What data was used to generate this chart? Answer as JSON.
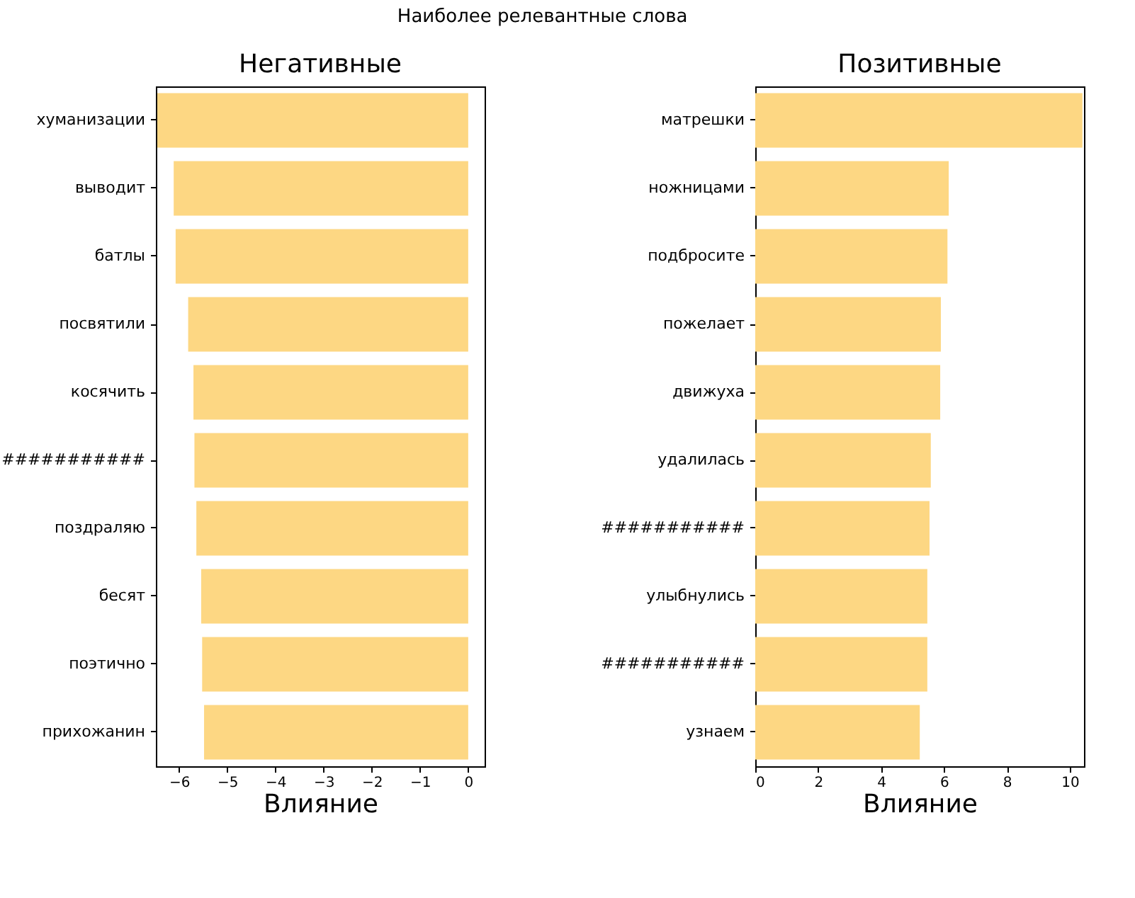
{
  "chart_data": [
    {
      "type": "bar",
      "orientation": "horizontal",
      "title": "Негативные",
      "xlabel": "Влияние",
      "annotations": [
        "Наиболее релевантные слова"
      ],
      "categories": [
        "хуманизации",
        "выводит",
        "батлы",
        "посвятили",
        "косячить",
        "###########",
        "поздраляю",
        "бесят",
        "поэтично",
        "прихожанин"
      ],
      "values": [
        -6.45,
        -6.11,
        -6.07,
        -5.81,
        -5.7,
        -5.68,
        -5.64,
        -5.54,
        -5.52,
        -5.48
      ],
      "color": "#fdd783",
      "xlim": [
        -6.48,
        0.34
      ],
      "xticks": [
        {
          "value": -6,
          "label": "−6"
        },
        {
          "value": -5,
          "label": "−5"
        },
        {
          "value": -4,
          "label": "−4"
        },
        {
          "value": -3,
          "label": "−3"
        },
        {
          "value": -2,
          "label": "−2"
        },
        {
          "value": -1,
          "label": "−1"
        },
        0
      ],
      "grid": false
    },
    {
      "type": "bar",
      "orientation": "horizontal",
      "title": "Позитивные",
      "xlabel": "Влияние",
      "categories": [
        "матрешки",
        "ножницами",
        "подбросите",
        "пожелает",
        "движуха",
        "удалилась",
        "###########",
        "улыбнулись",
        "###########",
        "узнаем"
      ],
      "values": [
        10.4,
        6.15,
        6.11,
        5.9,
        5.88,
        5.58,
        5.54,
        5.47,
        5.47,
        5.23
      ],
      "color": "#fdd783",
      "xlim": [
        0,
        10.45
      ],
      "xticks": [
        0,
        2,
        4,
        6,
        8,
        10
      ],
      "grid": false
    }
  ]
}
